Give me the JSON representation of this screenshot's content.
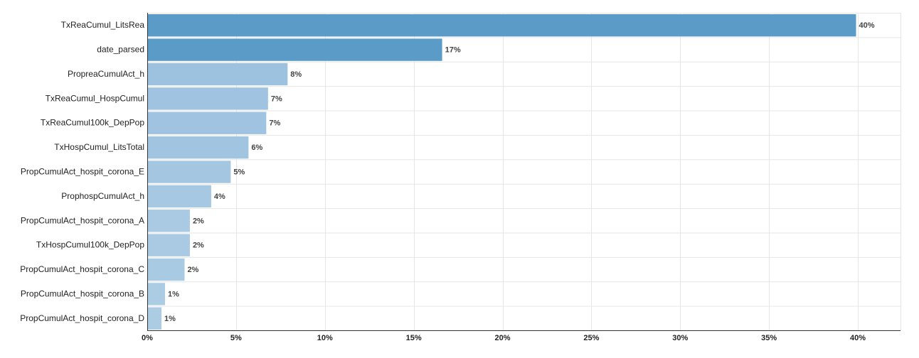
{
  "chart_data": {
    "type": "bar",
    "orientation": "horizontal",
    "title": "",
    "xlabel": "",
    "ylabel": "",
    "categories": [
      "TxReaCumul_LitsRea",
      "date_parsed",
      "PropreaCumulAct_h",
      "TxReaCumul_HospCumul",
      "TxReaCumul100k_DepPop",
      "TxHospCumul_LitsTotal",
      "PropCumulAct_hospit_corona_E",
      "ProphospCumulAct_h",
      "PropCumulAct_hospit_corona_A",
      "TxHospCumul100k_DepPop",
      "PropCumulAct_hospit_corona_C",
      "PropCumulAct_hospit_corona_B",
      "PropCumulAct_hospit_corona_D"
    ],
    "values": [
      39.9,
      16.6,
      7.9,
      6.8,
      6.7,
      5.7,
      4.7,
      3.6,
      2.4,
      2.4,
      2.1,
      1.0,
      0.8
    ],
    "value_labels": [
      "40%",
      "17%",
      "8%",
      "7%",
      "7%",
      "6%",
      "5%",
      "4%",
      "2%",
      "2%",
      "2%",
      "1%",
      "1%"
    ],
    "xlim": [
      0,
      42
    ],
    "x_ticks": [
      0,
      5,
      10,
      15,
      20,
      25,
      30,
      35,
      40
    ],
    "x_tick_labels": [
      "0%",
      "5%",
      "10%",
      "15%",
      "20%",
      "25%",
      "30%",
      "35%",
      "40%"
    ],
    "grid": true,
    "legend": "none",
    "colors": {
      "dark": "#5b9bc8",
      "mid": "#8fb9db",
      "light": "#aecde4",
      "bar_color_scale": "value"
    }
  }
}
